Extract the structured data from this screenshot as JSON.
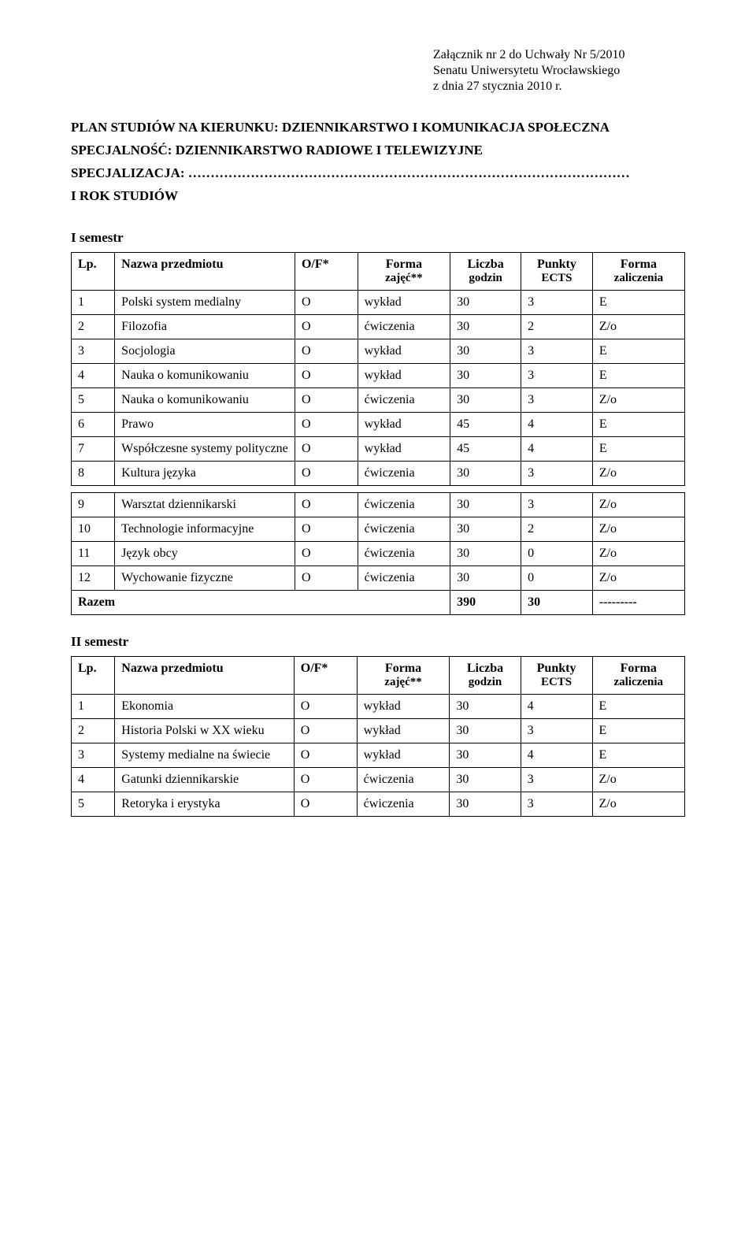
{
  "annex": {
    "line1": "Załącznik nr 2 do Uchwały Nr 5/2010",
    "line2": "Senatu Uniwersytetu Wrocławskiego",
    "line3": "z dnia 27 stycznia 2010 r."
  },
  "title": {
    "line1": "PLAN STUDIÓW NA KIERUNKU: DZIENNIKARSTWO I KOMUNIKACJA SPOŁECZNA",
    "line2": "SPECJALNOŚĆ: DZIENNIKARSTWO RADIOWE I TELEWIZYJNE",
    "line3": "SPECJALIZACJA: ………………………………………………………………………………………",
    "line4": "I ROK STUDIÓW"
  },
  "headers": {
    "lp": "Lp.",
    "name": "Nazwa przedmiotu",
    "of": "O/F*",
    "form_top": "Forma",
    "form_sub": "zajęć**",
    "hours_top": "Liczba",
    "hours_sub": "godzin",
    "ects_top": "Punkty",
    "ects_sub": "ECTS",
    "final_top": "Forma",
    "final_sub": "zaliczenia"
  },
  "semester1": {
    "label": "I semestr",
    "rows": [
      {
        "lp": "1",
        "name": "Polski system medialny",
        "of": "O",
        "form": "wykład",
        "hours": "30",
        "ects": "3",
        "final": "E"
      },
      {
        "lp": "2",
        "name": "Filozofia",
        "of": "O",
        "form": "ćwiczenia",
        "hours": "30",
        "ects": "2",
        "final": "Z/o"
      },
      {
        "lp": "3",
        "name": "Socjologia",
        "of": "O",
        "form": "wykład",
        "hours": "30",
        "ects": "3",
        "final": "E"
      },
      {
        "lp": "4",
        "name": "Nauka o komunikowaniu",
        "of": "O",
        "form": "wykład",
        "hours": "30",
        "ects": "3",
        "final": "E"
      },
      {
        "lp": "5",
        "name": "Nauka o komunikowaniu",
        "of": "O",
        "form": "ćwiczenia",
        "hours": "30",
        "ects": "3",
        "final": "Z/o"
      },
      {
        "lp": "6",
        "name": "Prawo",
        "of": "O",
        "form": "wykład",
        "hours": "45",
        "ects": "4",
        "final": "E"
      },
      {
        "lp": "7",
        "name": "Współczesne systemy polityczne",
        "of": "O",
        "form": "wykład",
        "hours": "45",
        "ects": "4",
        "final": "E"
      },
      {
        "lp": "8",
        "name": "Kultura języka",
        "of": "O",
        "form": "ćwiczenia",
        "hours": "30",
        "ects": "3",
        "final": "Z/o"
      },
      {
        "lp": "9",
        "name": "Warsztat dziennikarski",
        "of": "O",
        "form": "ćwiczenia",
        "hours": "30",
        "ects": "3",
        "final": "Z/o"
      },
      {
        "lp": "10",
        "name": "Technologie informacyjne",
        "of": "O",
        "form": "ćwiczenia",
        "hours": "30",
        "ects": "2",
        "final": "Z/o"
      },
      {
        "lp": "11",
        "name": "Język obcy",
        "of": "O",
        "form": "ćwiczenia",
        "hours": "30",
        "ects": "0",
        "final": "Z/o"
      },
      {
        "lp": "12",
        "name": "Wychowanie fizyczne",
        "of": "O",
        "form": "ćwiczenia",
        "hours": "30",
        "ects": "0",
        "final": "Z/o"
      }
    ],
    "total": {
      "label": "Razem",
      "hours": "390",
      "ects": "30",
      "final": "---------"
    },
    "gap_after_row": 8
  },
  "semester2": {
    "label": "II semestr",
    "rows": [
      {
        "lp": "1",
        "name": "Ekonomia",
        "of": "O",
        "form": "wykład",
        "hours": "30",
        "ects": "4",
        "final": "E"
      },
      {
        "lp": "2",
        "name": "Historia Polski w XX wieku",
        "of": "O",
        "form": "wykład",
        "hours": "30",
        "ects": "3",
        "final": "E"
      },
      {
        "lp": "3",
        "name": "Systemy medialne na świecie",
        "of": "O",
        "form": "wykład",
        "hours": "30",
        "ects": "4",
        "final": "E"
      },
      {
        "lp": "4",
        "name": "Gatunki dziennikarskie",
        "of": "O",
        "form": "ćwiczenia",
        "hours": "30",
        "ects": "3",
        "final": "Z/o"
      },
      {
        "lp": "5",
        "name": "Retoryka i erystyka",
        "of": "O",
        "form": "ćwiczenia",
        "hours": "30",
        "ects": "3",
        "final": "Z/o"
      }
    ]
  }
}
